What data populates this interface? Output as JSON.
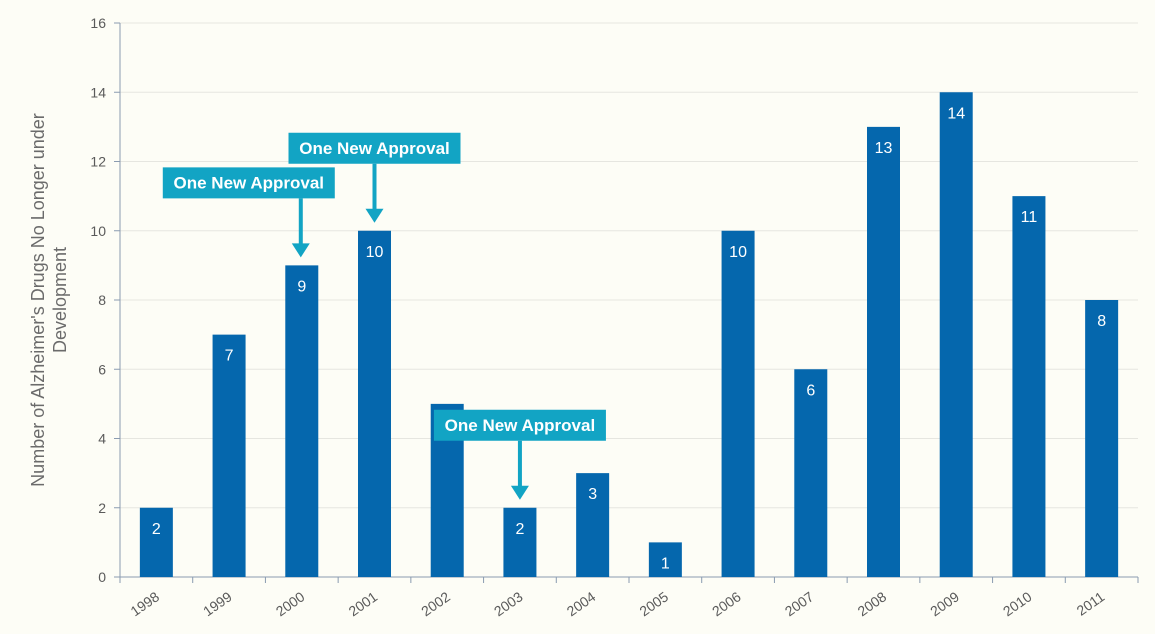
{
  "chart_data": {
    "type": "bar",
    "title": "",
    "xlabel": "",
    "ylabel": [
      "Number of Alzheimer's Drugs No Longer under",
      "Development"
    ],
    "categories": [
      "1998",
      "1999",
      "2000",
      "2001",
      "2002",
      "2003",
      "2004",
      "2005",
      "2006",
      "2007",
      "2008",
      "2009",
      "2010",
      "2011"
    ],
    "values": [
      2,
      7,
      9,
      10,
      5,
      2,
      3,
      1,
      10,
      6,
      13,
      14,
      11,
      8
    ],
    "ylim": [
      0,
      16
    ],
    "yticks": [
      0,
      2,
      4,
      6,
      8,
      10,
      12,
      14,
      16
    ],
    "grid": true,
    "bar_color": "#0567ad",
    "annotations": [
      {
        "category": "2000",
        "text": "One New Approval"
      },
      {
        "category": "2001",
        "text": "One New Approval"
      },
      {
        "category": "2003",
        "text": "One New Approval"
      }
    ]
  }
}
